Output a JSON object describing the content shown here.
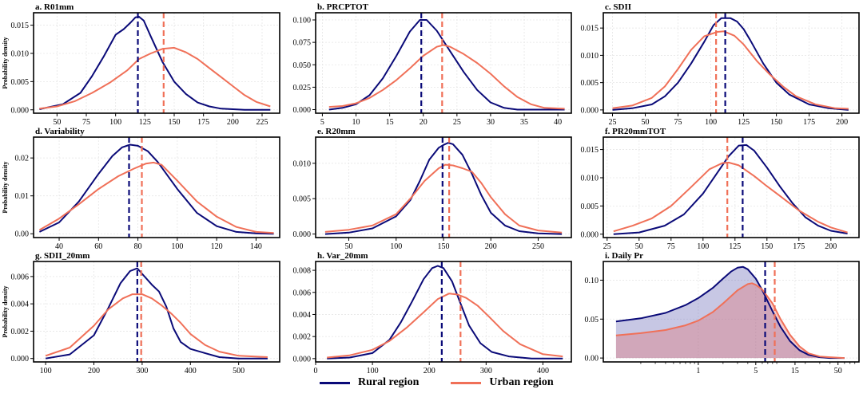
{
  "colors": {
    "rural": "#0a0a78",
    "urban": "#f07058"
  },
  "ylabel": "Probability density",
  "legend": {
    "rural": "Rural region",
    "urban": "Urban region"
  },
  "chart_data": [
    {
      "type": "line",
      "title": "a. R01mm",
      "xlim": [
        30,
        240
      ],
      "ylim": [
        -0.0006,
        0.0172
      ],
      "xticks": [
        50,
        75,
        100,
        125,
        150,
        175,
        200,
        225
      ],
      "yticks": [
        0.0,
        0.005,
        0.01,
        0.015
      ],
      "ytick_labels": [
        "0.000",
        "0.005",
        "0.010",
        "0.015"
      ],
      "rural_mean": 119,
      "urban_mean": 141,
      "series": [
        {
          "name": "Rural region",
          "x": [
            35,
            55,
            70,
            80,
            90,
            100,
            107,
            113,
            117,
            120,
            124,
            130,
            140,
            150,
            160,
            170,
            180,
            190,
            200,
            210,
            220,
            232
          ],
          "y": [
            0.0001,
            0.001,
            0.003,
            0.006,
            0.0095,
            0.0133,
            0.0143,
            0.0155,
            0.0164,
            0.0165,
            0.0158,
            0.013,
            0.0085,
            0.005,
            0.0028,
            0.0013,
            0.0006,
            0.0002,
            0.0001,
            0.0,
            0.0,
            0.0
          ]
        },
        {
          "name": "Urban region",
          "x": [
            35,
            50,
            65,
            80,
            95,
            110,
            120,
            130,
            140,
            150,
            160,
            170,
            180,
            190,
            200,
            210,
            220,
            232
          ],
          "y": [
            0.0002,
            0.0006,
            0.0015,
            0.003,
            0.0048,
            0.007,
            0.009,
            0.01,
            0.0108,
            0.011,
            0.0102,
            0.009,
            0.0074,
            0.0058,
            0.0042,
            0.0026,
            0.0014,
            0.0006
          ]
        }
      ]
    },
    {
      "type": "line",
      "title": "b. PRCPTOT",
      "xlim": [
        4,
        42
      ],
      "ylim": [
        -0.004,
        0.108
      ],
      "xticks": [
        5,
        10,
        15,
        20,
        25,
        30,
        35,
        40
      ],
      "yticks": [
        0.0,
        0.025,
        0.05,
        0.075,
        0.1
      ],
      "ytick_labels": [
        "0.000",
        "0.025",
        "0.050",
        "0.075",
        "0.100"
      ],
      "rural_mean": 19.7,
      "urban_mean": 22.8,
      "series": [
        {
          "name": "Rural region",
          "x": [
            6,
            8,
            10,
            12,
            14,
            16,
            18,
            19.5,
            20.5,
            22,
            24,
            26,
            28,
            30,
            32,
            34,
            36,
            41
          ],
          "y": [
            0.0,
            0.002,
            0.006,
            0.016,
            0.035,
            0.06,
            0.087,
            0.1,
            0.1,
            0.088,
            0.065,
            0.042,
            0.022,
            0.008,
            0.002,
            0.0,
            0.0,
            0.0
          ]
        },
        {
          "name": "Urban region",
          "x": [
            6,
            8,
            10,
            12,
            14,
            16,
            18,
            20,
            22,
            23,
            24,
            26,
            28,
            30,
            32,
            34,
            36,
            38,
            41
          ],
          "y": [
            0.003,
            0.004,
            0.007,
            0.013,
            0.022,
            0.033,
            0.046,
            0.06,
            0.07,
            0.072,
            0.07,
            0.062,
            0.052,
            0.04,
            0.026,
            0.014,
            0.006,
            0.002,
            0.001
          ]
        }
      ]
    },
    {
      "type": "line",
      "title": "c. SDII",
      "xlim": [
        18,
        213
      ],
      "ylim": [
        -0.0006,
        0.0178
      ],
      "xticks": [
        25,
        50,
        75,
        100,
        125,
        150,
        175,
        200
      ],
      "yticks": [
        0.0,
        0.005,
        0.01,
        0.015
      ],
      "ytick_labels": [
        "0.000",
        "0.005",
        "0.010",
        "0.015"
      ],
      "rural_mean": 111,
      "urban_mean": 104,
      "series": [
        {
          "name": "Rural region",
          "x": [
            25,
            40,
            55,
            65,
            75,
            85,
            95,
            102,
            108,
            115,
            120,
            125,
            130,
            140,
            150,
            160,
            175,
            190,
            205
          ],
          "y": [
            0.0,
            0.0003,
            0.001,
            0.0025,
            0.005,
            0.0085,
            0.0125,
            0.0155,
            0.0168,
            0.0168,
            0.0162,
            0.0148,
            0.0128,
            0.0085,
            0.005,
            0.0028,
            0.001,
            0.0003,
            0.0
          ]
        },
        {
          "name": "Urban region",
          "x": [
            25,
            40,
            55,
            65,
            75,
            85,
            95,
            105,
            110,
            118,
            125,
            135,
            145,
            155,
            165,
            180,
            195,
            205
          ],
          "y": [
            0.0003,
            0.0008,
            0.0022,
            0.0043,
            0.0075,
            0.011,
            0.0135,
            0.0143,
            0.0144,
            0.0136,
            0.012,
            0.009,
            0.0065,
            0.0043,
            0.0025,
            0.001,
            0.0003,
            0.0002
          ]
        }
      ]
    },
    {
      "type": "line",
      "title": "d. Variability",
      "xlim": [
        27,
        152
      ],
      "ylim": [
        -0.001,
        0.0255
      ],
      "xticks": [
        40,
        60,
        80,
        100,
        120,
        140
      ],
      "yticks": [
        0.0,
        0.01,
        0.02
      ],
      "ytick_labels": [
        "0.00",
        "0.01",
        "0.02"
      ],
      "rural_mean": 75.5,
      "urban_mean": 82,
      "series": [
        {
          "name": "Rural region",
          "x": [
            30,
            40,
            50,
            60,
            67,
            72,
            76,
            80,
            85,
            90,
            100,
            110,
            120,
            130,
            140,
            149
          ],
          "y": [
            0.0005,
            0.003,
            0.0085,
            0.0158,
            0.0205,
            0.0228,
            0.0235,
            0.0232,
            0.0218,
            0.019,
            0.0118,
            0.0055,
            0.002,
            0.0005,
            0.0001,
            0.0
          ]
        },
        {
          "name": "Urban region",
          "x": [
            30,
            40,
            50,
            60,
            70,
            78,
            84,
            88,
            92,
            100,
            110,
            120,
            130,
            140,
            149
          ],
          "y": [
            0.001,
            0.004,
            0.0078,
            0.0118,
            0.0152,
            0.0172,
            0.0185,
            0.0188,
            0.0182,
            0.014,
            0.0085,
            0.0045,
            0.0018,
            0.0005,
            0.0002
          ]
        }
      ]
    },
    {
      "type": "line",
      "title": "e. R20mm",
      "xlim": [
        15,
        285
      ],
      "ylim": [
        -0.0005,
        0.0137
      ],
      "xticks": [
        50,
        100,
        150,
        200,
        250
      ],
      "yticks": [
        0.0,
        0.005,
        0.01
      ],
      "ytick_labels": [
        "0.000",
        "0.005",
        "0.010"
      ],
      "rural_mean": 149,
      "urban_mean": 156,
      "series": [
        {
          "name": "Rural region",
          "x": [
            25,
            50,
            75,
            100,
            115,
            125,
            135,
            145,
            150,
            155,
            160,
            170,
            180,
            190,
            200,
            215,
            230,
            250,
            275
          ],
          "y": [
            0.0,
            0.0002,
            0.0008,
            0.0025,
            0.0048,
            0.0075,
            0.0105,
            0.0122,
            0.0126,
            0.0129,
            0.0127,
            0.0112,
            0.0085,
            0.0055,
            0.003,
            0.0012,
            0.0004,
            0.0001,
            0.0
          ]
        },
        {
          "name": "Urban region",
          "x": [
            25,
            50,
            75,
            100,
            115,
            130,
            145,
            152,
            160,
            170,
            180,
            190,
            200,
            215,
            230,
            250,
            275
          ],
          "y": [
            0.0003,
            0.0006,
            0.0012,
            0.0028,
            0.005,
            0.0075,
            0.0093,
            0.0098,
            0.0097,
            0.0093,
            0.0088,
            0.0072,
            0.0052,
            0.0028,
            0.0012,
            0.0005,
            0.0002
          ]
        }
      ]
    },
    {
      "type": "line",
      "title": "f. PR20mmTOT",
      "xlim": [
        22,
        222
      ],
      "ylim": [
        -0.0006,
        0.0172
      ],
      "xticks": [
        25,
        50,
        75,
        100,
        125,
        150,
        175,
        200
      ],
      "yticks": [
        0.0,
        0.005,
        0.01,
        0.015
      ],
      "ytick_labels": [
        "0.000",
        "0.005",
        "0.010",
        "0.015"
      ],
      "rural_mean": 131,
      "urban_mean": 119,
      "series": [
        {
          "name": "Rural region",
          "x": [
            30,
            50,
            70,
            85,
            100,
            110,
            120,
            128,
            134,
            140,
            150,
            160,
            170,
            180,
            190,
            200,
            213
          ],
          "y": [
            0.0,
            0.0003,
            0.0015,
            0.0035,
            0.0072,
            0.0105,
            0.0138,
            0.0157,
            0.0158,
            0.0148,
            0.0118,
            0.0085,
            0.0055,
            0.003,
            0.0015,
            0.0006,
            0.0001
          ]
        },
        {
          "name": "Urban region",
          "x": [
            30,
            45,
            60,
            75,
            90,
            105,
            115,
            120,
            128,
            140,
            150,
            160,
            175,
            190,
            200,
            213
          ],
          "y": [
            0.0005,
            0.0015,
            0.0028,
            0.005,
            0.0082,
            0.0115,
            0.0126,
            0.0127,
            0.0122,
            0.0103,
            0.0085,
            0.0068,
            0.0042,
            0.0022,
            0.0012,
            0.0003
          ]
        }
      ]
    },
    {
      "type": "line",
      "title": "g. SDII_20mm",
      "xlim": [
        75,
        585
      ],
      "ylim": [
        -0.00025,
        0.0071
      ],
      "xticks": [
        100,
        200,
        300,
        400,
        500
      ],
      "yticks": [
        0.0,
        0.002,
        0.004,
        0.006
      ],
      "ytick_labels": [
        "0.000",
        "0.002",
        "0.004",
        "0.006"
      ],
      "rural_mean": 290,
      "urban_mean": 298,
      "series": [
        {
          "name": "Rural region",
          "x": [
            100,
            150,
            200,
            230,
            255,
            275,
            290,
            305,
            320,
            335,
            350,
            365,
            380,
            400,
            430,
            460,
            500,
            560
          ],
          "y": [
            0.0,
            0.0003,
            0.0017,
            0.0037,
            0.0055,
            0.0064,
            0.0066,
            0.006,
            0.0054,
            0.0049,
            0.0038,
            0.0022,
            0.0012,
            0.0007,
            0.0004,
            0.0001,
            0.0,
            0.0
          ]
        },
        {
          "name": "Urban region",
          "x": [
            100,
            150,
            200,
            230,
            260,
            280,
            300,
            320,
            340,
            360,
            380,
            400,
            430,
            460,
            500,
            560
          ],
          "y": [
            0.0002,
            0.0008,
            0.0024,
            0.0036,
            0.0044,
            0.0047,
            0.0047,
            0.0044,
            0.0039,
            0.0033,
            0.0026,
            0.0018,
            0.001,
            0.0005,
            0.0002,
            0.0001
          ]
        }
      ]
    },
    {
      "type": "line",
      "title": "h. Var_20mm",
      "xlim": [
        0,
        450
      ],
      "ylim": [
        -0.0003,
        0.0088
      ],
      "xticks": [
        0,
        100,
        200,
        300,
        400
      ],
      "yticks": [
        0.0,
        0.002,
        0.004,
        0.006,
        0.008
      ],
      "ytick_labels": [
        "0.000",
        "0.002",
        "0.004",
        "0.006",
        "0.008"
      ],
      "rural_mean": 222,
      "urban_mean": 255,
      "series": [
        {
          "name": "Rural region",
          "x": [
            20,
            60,
            100,
            130,
            150,
            170,
            190,
            205,
            215,
            225,
            240,
            255,
            270,
            290,
            310,
            340,
            380,
            435
          ],
          "y": [
            0.0,
            0.0001,
            0.0005,
            0.0017,
            0.0033,
            0.0052,
            0.0072,
            0.0082,
            0.0084,
            0.0082,
            0.007,
            0.005,
            0.003,
            0.0014,
            0.0006,
            0.0002,
            0.0,
            0.0
          ]
        },
        {
          "name": "Urban region",
          "x": [
            20,
            60,
            100,
            130,
            160,
            190,
            215,
            235,
            250,
            265,
            285,
            305,
            330,
            360,
            400,
            435
          ],
          "y": [
            0.0001,
            0.0003,
            0.0008,
            0.0016,
            0.0028,
            0.0042,
            0.0054,
            0.0059,
            0.0058,
            0.0055,
            0.0048,
            0.0038,
            0.0025,
            0.0013,
            0.0004,
            0.0002
          ]
        }
      ]
    },
    {
      "type": "area",
      "title": "i. Daily Pr",
      "xscale": "log",
      "xlim": [
        0.07,
        90
      ],
      "ylim": [
        -0.005,
        0.124
      ],
      "xticks": [
        1,
        5,
        15,
        50
      ],
      "yticks": [
        0.0,
        0.05,
        0.1
      ],
      "ytick_labels": [
        "0.00",
        "0.05",
        "0.10"
      ],
      "rural_mean": 6.5,
      "urban_mean": 8.5,
      "series": [
        {
          "name": "Rural region",
          "x": [
            0.1,
            0.2,
            0.4,
            0.7,
            1,
            1.5,
            2,
            2.5,
            3,
            3.5,
            4,
            5,
            6,
            8,
            10,
            13,
            17,
            22,
            30,
            40,
            60
          ],
          "y": [
            0.047,
            0.051,
            0.058,
            0.068,
            0.077,
            0.09,
            0.102,
            0.111,
            0.116,
            0.117,
            0.114,
            0.102,
            0.087,
            0.06,
            0.04,
            0.022,
            0.01,
            0.004,
            0.001,
            0.0,
            0.0
          ]
        },
        {
          "name": "Urban region",
          "x": [
            0.1,
            0.2,
            0.4,
            0.7,
            1,
            1.5,
            2,
            3,
            4,
            4.5,
            5,
            6,
            8,
            10,
            13,
            17,
            22,
            30,
            40,
            60
          ],
          "y": [
            0.029,
            0.032,
            0.036,
            0.042,
            0.048,
            0.059,
            0.07,
            0.087,
            0.095,
            0.096,
            0.094,
            0.088,
            0.07,
            0.05,
            0.03,
            0.015,
            0.006,
            0.002,
            0.001,
            0.0
          ]
        }
      ]
    }
  ]
}
